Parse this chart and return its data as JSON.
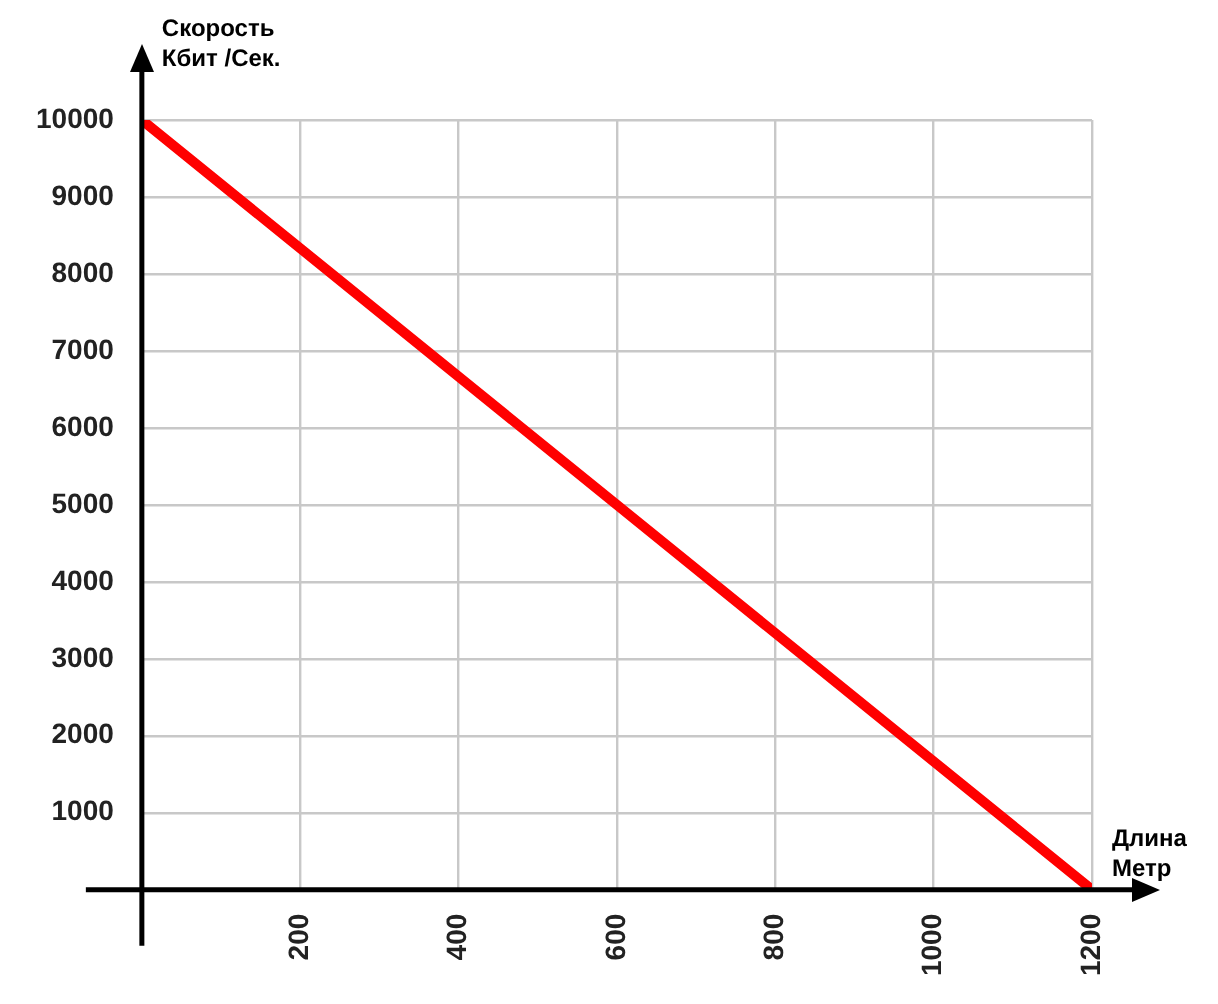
{
  "chart_data": {
    "type": "line",
    "xlabel": "Длина Метр",
    "ylabel": "Скорость Кбит /Сек.",
    "x": [
      0,
      1200
    ],
    "series": [
      {
        "color": "#ff0000",
        "values": [
          10000,
          0
        ]
      }
    ],
    "xlim": [
      0,
      1200
    ],
    "xticks": [
      {
        "value": 0,
        "label": null
      },
      200,
      400,
      600,
      800,
      1000,
      1200
    ],
    "ylim": [
      0,
      10000
    ],
    "yticks": [
      {
        "value": 0,
        "label": null
      },
      1000,
      2000,
      3000,
      4000,
      5000,
      6000,
      7000,
      8000,
      9000,
      10000
    ],
    "grid": true,
    "legend": false,
    "marker": "none",
    "line_style": "solid"
  }
}
